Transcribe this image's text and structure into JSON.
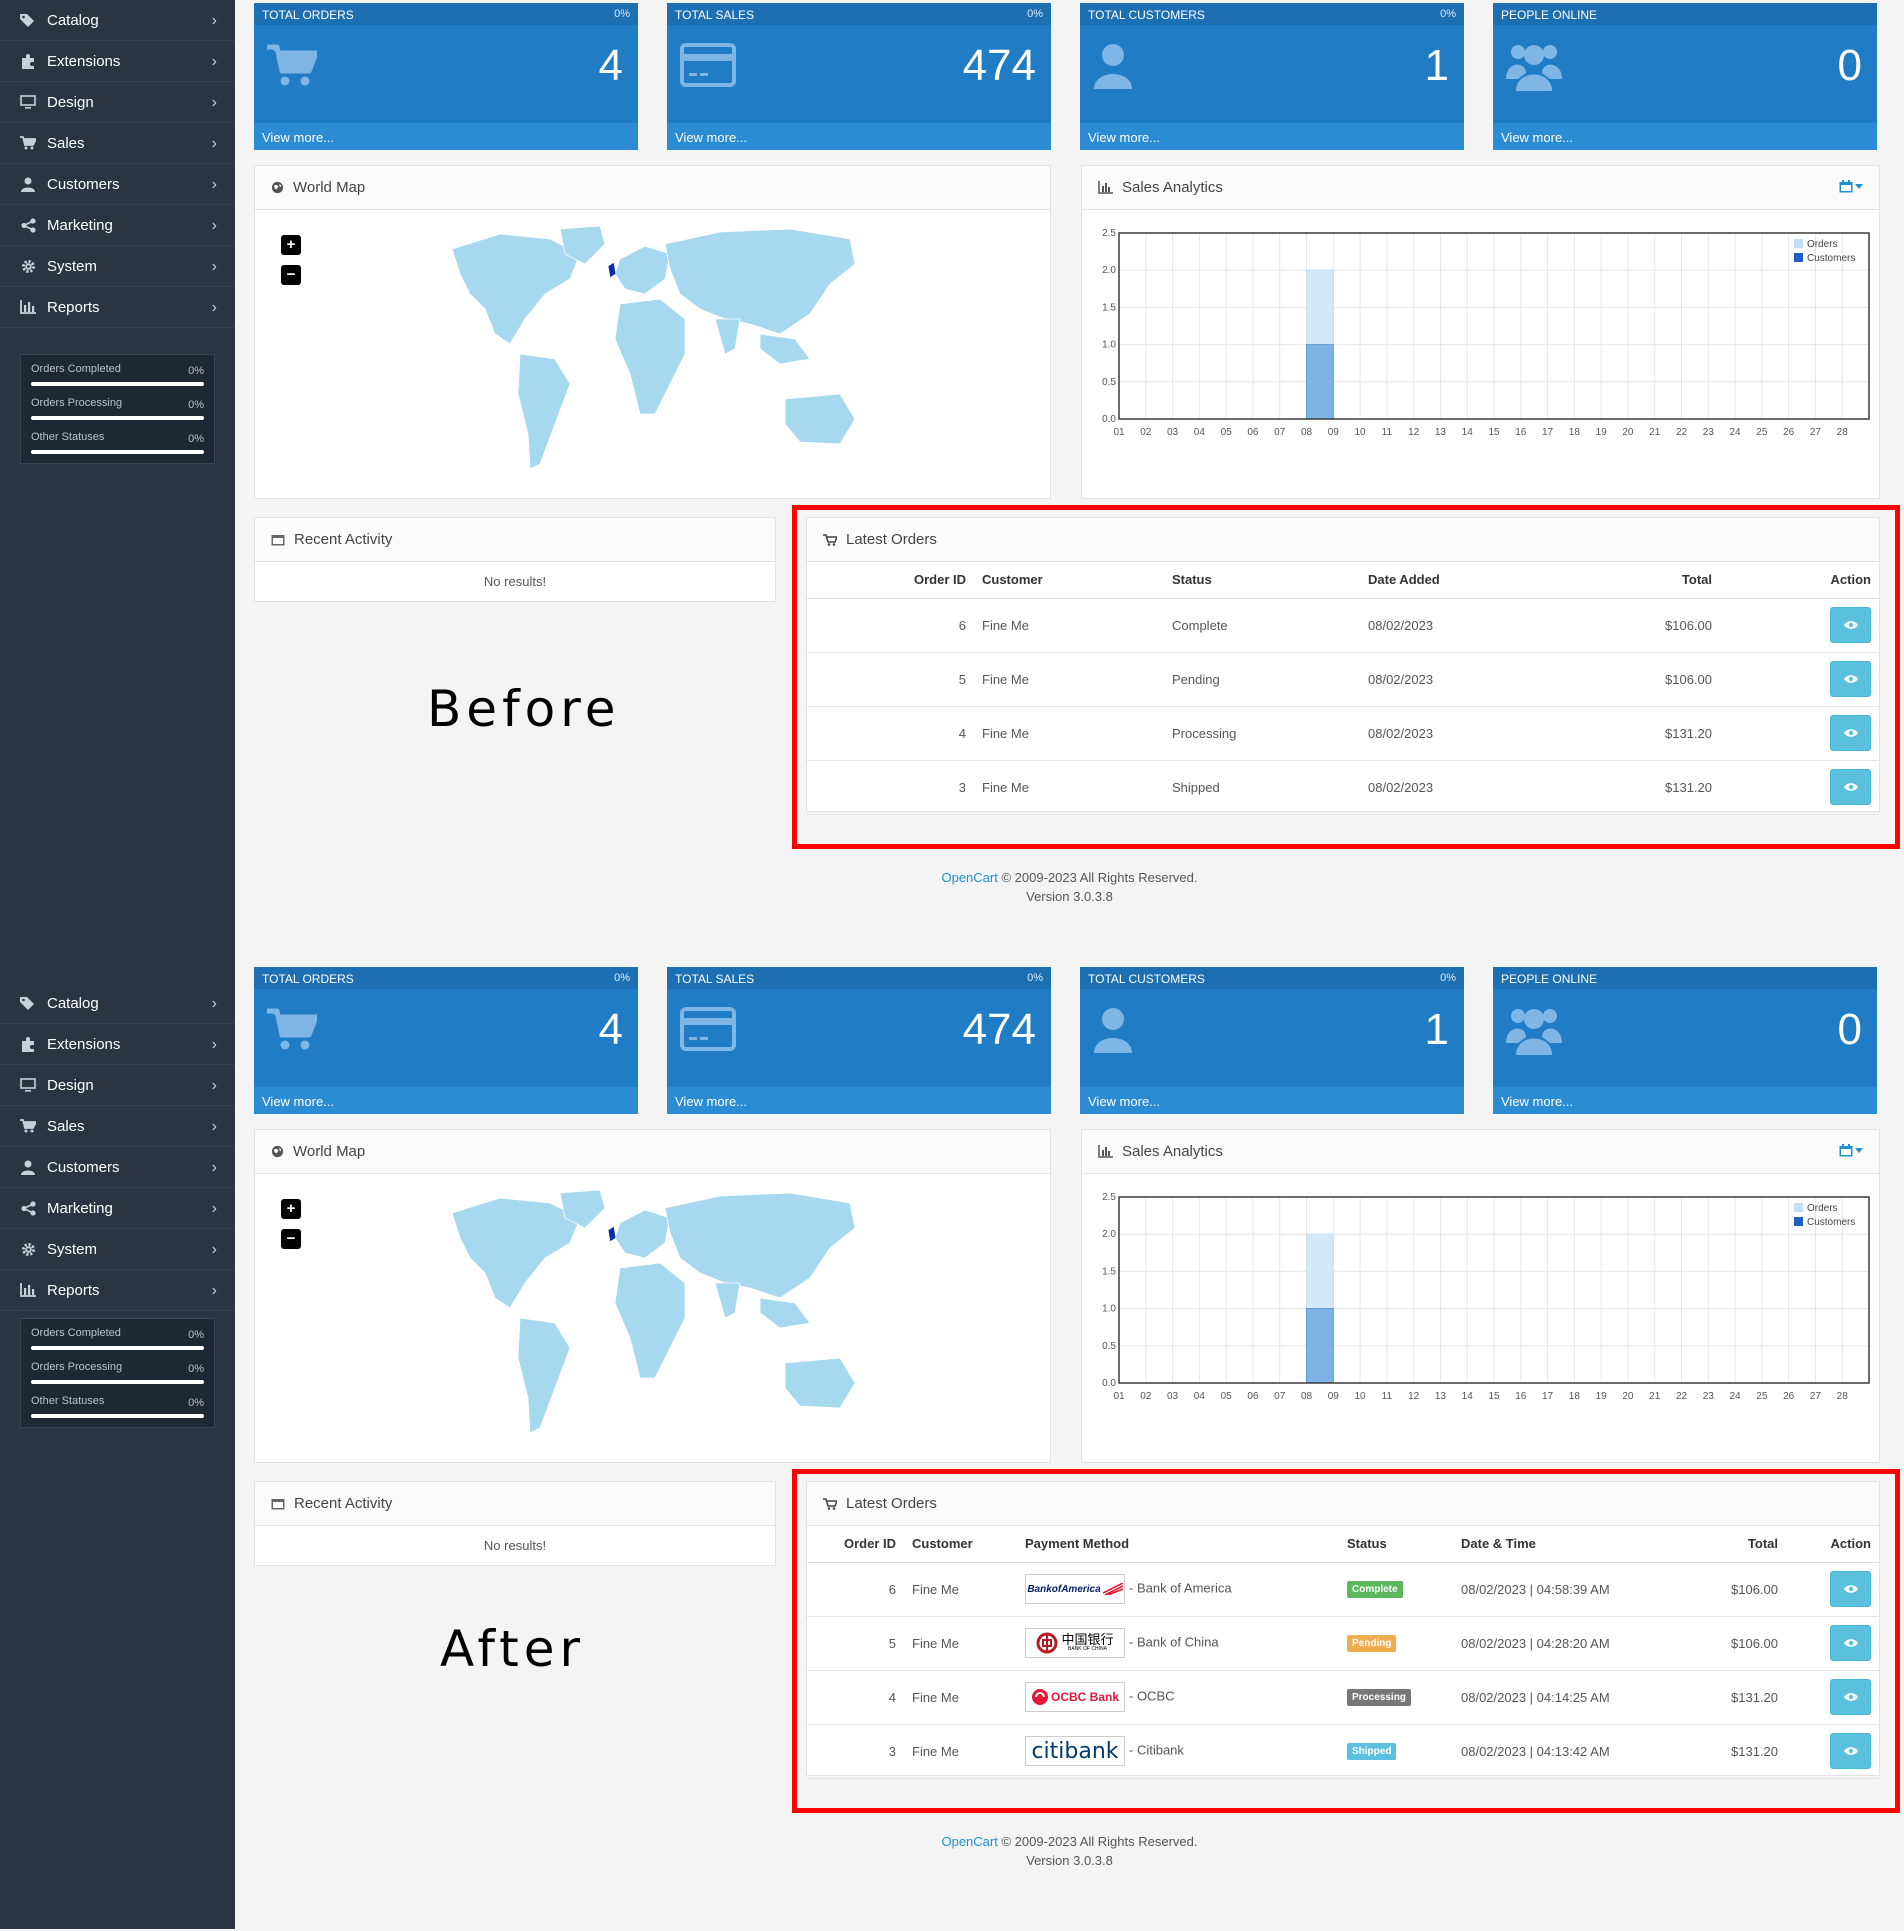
{
  "sidebar": {
    "items": [
      {
        "label": "Catalog",
        "icon": "tags-icon"
      },
      {
        "label": "Extensions",
        "icon": "puzzle-icon"
      },
      {
        "label": "Design",
        "icon": "monitor-icon"
      },
      {
        "label": "Sales",
        "icon": "cart-icon"
      },
      {
        "label": "Customers",
        "icon": "user-icon"
      },
      {
        "label": "Marketing",
        "icon": "share-icon"
      },
      {
        "label": "System",
        "icon": "gear-icon"
      },
      {
        "label": "Reports",
        "icon": "bar-chart-icon"
      }
    ],
    "stats": [
      {
        "label": "Orders Completed",
        "percent": "0%",
        "progress": 0
      },
      {
        "label": "Orders Processing",
        "percent": "0%",
        "progress": 0
      },
      {
        "label": "Other Statuses",
        "percent": "0%",
        "progress": 0
      }
    ]
  },
  "tiles": [
    {
      "title": "TOTAL ORDERS",
      "percent": "0%",
      "value": "4",
      "link": "View more...",
      "icon": "cart-icon"
    },
    {
      "title": "TOTAL SALES",
      "percent": "0%",
      "value": "474",
      "link": "View more...",
      "icon": "credit-card-icon"
    },
    {
      "title": "TOTAL CUSTOMERS",
      "percent": "0%",
      "value": "1",
      "link": "View more...",
      "icon": "user-icon"
    },
    {
      "title": "PEOPLE ONLINE",
      "percent": "",
      "value": "0",
      "link": "View more...",
      "icon": "users-icon"
    }
  ],
  "world_map": {
    "title": "World Map",
    "zoom_in": "+",
    "zoom_out": "−"
  },
  "sales_analytics": {
    "title": "Sales Analytics"
  },
  "recent_activity": {
    "title": "Recent Activity",
    "empty": "No results!"
  },
  "latest_orders": {
    "title": "Latest Orders"
  },
  "labels": {
    "before": "Before",
    "after": "After"
  },
  "before_table": {
    "headers": {
      "order_id": "Order ID",
      "customer": "Customer",
      "status": "Status",
      "date": "Date Added",
      "total": "Total",
      "action": "Action"
    },
    "rows": [
      {
        "id": "6",
        "customer": "Fine Me",
        "status": "Complete",
        "date": "08/02/2023",
        "total": "$106.00"
      },
      {
        "id": "5",
        "customer": "Fine Me",
        "status": "Pending",
        "date": "08/02/2023",
        "total": "$106.00"
      },
      {
        "id": "4",
        "customer": "Fine Me",
        "status": "Processing",
        "date": "08/02/2023",
        "total": "$131.20"
      },
      {
        "id": "3",
        "customer": "Fine Me",
        "status": "Shipped",
        "date": "08/02/2023",
        "total": "$131.20"
      }
    ]
  },
  "after_table": {
    "headers": {
      "order_id": "Order ID",
      "customer": "Customer",
      "payment": "Payment Method",
      "status": "Status",
      "date": "Date & Time",
      "total": "Total",
      "action": "Action"
    },
    "rows": [
      {
        "id": "6",
        "customer": "Fine Me",
        "bank_logo": "BankofAmerica",
        "bank": "- Bank of America",
        "status": "Complete",
        "status_color": "#5cb85c",
        "date": "08/02/2023 | 04:58:39 AM",
        "total": "$106.00"
      },
      {
        "id": "5",
        "customer": "Fine Me",
        "bank_logo": "中国银行",
        "bank_logo_sub": "BANK OF CHINA",
        "bank": "- Bank of China",
        "status": "Pending",
        "status_color": "#f0ad4e",
        "date": "08/02/2023 | 04:28:20 AM",
        "total": "$106.00"
      },
      {
        "id": "4",
        "customer": "Fine Me",
        "bank_logo": "OCBC Bank",
        "bank": "- OCBC",
        "status": "Processing",
        "status_color": "#777777",
        "date": "08/02/2023 | 04:14:25 AM",
        "total": "$131.20"
      },
      {
        "id": "3",
        "customer": "Fine Me",
        "bank_logo": "citibank",
        "bank": "- Citibank",
        "status": "Shipped",
        "status_color": "#5bc0de",
        "date": "08/02/2023 | 04:13:42 AM",
        "total": "$131.20"
      }
    ]
  },
  "footer": {
    "brand": "OpenCart",
    "copyright": " © 2009-2023 All Rights Reserved.",
    "version": "Version 3.0.3.8"
  },
  "colors": {
    "tile_blue": "#1f7cc5",
    "sidebar": "#2a3443",
    "accent": "#1e91cf",
    "highlight_frame": "#ff0000",
    "map_land": "#a6d8f0"
  },
  "chart_data": {
    "type": "bar",
    "title": "",
    "categories": [
      "01",
      "02",
      "03",
      "04",
      "05",
      "06",
      "07",
      "08",
      "09",
      "10",
      "11",
      "12",
      "13",
      "14",
      "15",
      "16",
      "17",
      "18",
      "19",
      "20",
      "21",
      "22",
      "23",
      "24",
      "25",
      "26",
      "27",
      "28"
    ],
    "series": [
      {
        "name": "Orders",
        "color": "#d4e9f7",
        "values": [
          0,
          0,
          0,
          0,
          0,
          0,
          0,
          2,
          0,
          0,
          0,
          0,
          0,
          0,
          0,
          0,
          0,
          0,
          0,
          0,
          0,
          0,
          0,
          0,
          0,
          0,
          0,
          0
        ]
      },
      {
        "name": "Customers",
        "color": "#7fb2e5",
        "values": [
          0,
          0,
          0,
          0,
          0,
          0,
          0,
          1,
          0,
          0,
          0,
          0,
          0,
          0,
          0,
          0,
          0,
          0,
          0,
          0,
          0,
          0,
          0,
          0,
          0,
          0,
          0,
          0
        ]
      }
    ],
    "y_ticks": [
      "0.0",
      "0.5",
      "1.0",
      "1.5",
      "2.0",
      "2.5"
    ],
    "ylim": [
      0,
      2.5
    ],
    "grid": true,
    "legend": "top-right"
  }
}
